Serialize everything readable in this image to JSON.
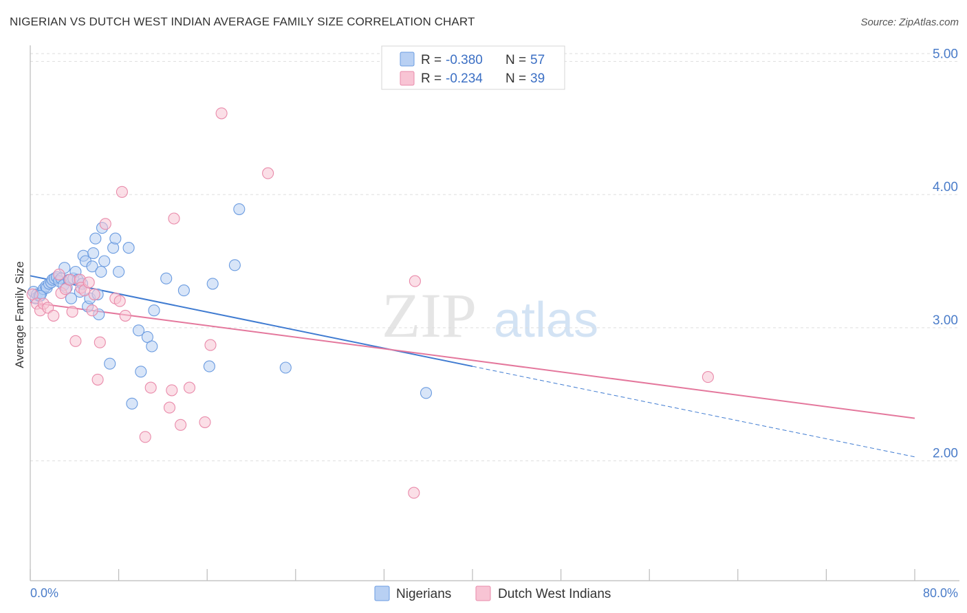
{
  "header": {
    "title": "NIGERIAN VS DUTCH WEST INDIAN AVERAGE FAMILY SIZE CORRELATION CHART",
    "source": "Source: ZipAtlas.com"
  },
  "watermark": {
    "zip": "ZIP",
    "atlas": "atlas"
  },
  "legend": {
    "rows": [
      {
        "r_label": "R =",
        "r_value": "-0.380",
        "n_label": "N =",
        "n_value": "57",
        "color": "#6a9be0"
      },
      {
        "r_label": "R =",
        "r_value": "-0.234",
        "n_label": "N =",
        "n_value": "39",
        "color": "#e98aaa"
      }
    ]
  },
  "bottom_legend": {
    "items": [
      "Nigerians",
      "Dutch West Indians"
    ]
  },
  "chart_data": {
    "type": "scatter",
    "title": "NIGERIAN VS DUTCH WEST INDIAN AVERAGE FAMILY SIZE CORRELATION CHART",
    "xlabel": "",
    "ylabel": "Average Family Size",
    "xlim": [
      0,
      80
    ],
    "ylim": [
      1.1,
      5.1
    ],
    "x_tick_labels": [
      "0.0%",
      "80.0%"
    ],
    "y_ticks": [
      2.0,
      3.0,
      4.0,
      5.0
    ],
    "y_tick_labels": [
      "2.00",
      "3.00",
      "4.00",
      "5.00"
    ],
    "grid": true,
    "legend_position": "top-center",
    "series": [
      {
        "name": "Nigerians",
        "color": "#6a9be0",
        "fill": "#b8d0f3",
        "r": -0.38,
        "n": 57,
        "trend": {
          "x0": 0,
          "y0": 3.39,
          "x1": 40,
          "y1": 2.71,
          "dashed_to_x": 80,
          "dashed_to_y": 2.03
        },
        "points": [
          [
            0.3,
            3.27
          ],
          [
            0.5,
            3.22
          ],
          [
            0.6,
            3.25
          ],
          [
            0.8,
            3.24
          ],
          [
            1.0,
            3.26
          ],
          [
            1.2,
            3.29
          ],
          [
            1.4,
            3.31
          ],
          [
            1.5,
            3.3
          ],
          [
            1.7,
            3.33
          ],
          [
            1.9,
            3.34
          ],
          [
            2.0,
            3.36
          ],
          [
            2.2,
            3.37
          ],
          [
            2.4,
            3.38
          ],
          [
            2.6,
            3.35
          ],
          [
            2.8,
            3.37
          ],
          [
            3.0,
            3.32
          ],
          [
            3.1,
            3.45
          ],
          [
            3.3,
            3.3
          ],
          [
            3.5,
            3.36
          ],
          [
            3.7,
            3.22
          ],
          [
            3.9,
            3.37
          ],
          [
            4.1,
            3.42
          ],
          [
            4.3,
            3.36
          ],
          [
            4.5,
            3.27
          ],
          [
            4.7,
            3.33
          ],
          [
            4.8,
            3.54
          ],
          [
            5.0,
            3.5
          ],
          [
            5.2,
            3.16
          ],
          [
            5.4,
            3.22
          ],
          [
            5.6,
            3.46
          ],
          [
            5.7,
            3.56
          ],
          [
            5.9,
            3.67
          ],
          [
            6.1,
            3.25
          ],
          [
            6.2,
            3.1
          ],
          [
            6.4,
            3.42
          ],
          [
            6.5,
            3.75
          ],
          [
            6.7,
            3.5
          ],
          [
            7.2,
            2.73
          ],
          [
            7.5,
            3.6
          ],
          [
            7.7,
            3.67
          ],
          [
            8.0,
            3.42
          ],
          [
            8.9,
            3.6
          ],
          [
            9.2,
            2.43
          ],
          [
            9.8,
            2.98
          ],
          [
            10.0,
            2.67
          ],
          [
            10.6,
            2.93
          ],
          [
            11.0,
            2.86
          ],
          [
            11.2,
            3.13
          ],
          [
            12.3,
            3.37
          ],
          [
            13.9,
            3.28
          ],
          [
            16.2,
            2.71
          ],
          [
            16.5,
            3.33
          ],
          [
            18.5,
            3.47
          ],
          [
            18.9,
            3.89
          ],
          [
            23.1,
            2.7
          ],
          [
            35.8,
            2.51
          ],
          [
            0.9,
            3.24
          ]
        ]
      },
      {
        "name": "Dutch West Indians",
        "color": "#e98aaa",
        "fill": "#f8c4d4",
        "r": -0.234,
        "n": 39,
        "trend": {
          "x0": 0,
          "y0": 3.19,
          "x1": 80,
          "y1": 2.32
        },
        "points": [
          [
            0.2,
            3.25
          ],
          [
            0.6,
            3.18
          ],
          [
            0.9,
            3.13
          ],
          [
            1.2,
            3.18
          ],
          [
            1.6,
            3.15
          ],
          [
            2.1,
            3.09
          ],
          [
            2.6,
            3.4
          ],
          [
            2.8,
            3.26
          ],
          [
            3.2,
            3.29
          ],
          [
            3.6,
            3.36
          ],
          [
            3.8,
            3.12
          ],
          [
            4.1,
            2.9
          ],
          [
            4.5,
            3.36
          ],
          [
            4.6,
            3.3
          ],
          [
            4.9,
            3.28
          ],
          [
            5.3,
            3.34
          ],
          [
            5.6,
            3.13
          ],
          [
            5.8,
            3.25
          ],
          [
            6.1,
            2.61
          ],
          [
            6.3,
            2.89
          ],
          [
            6.8,
            3.78
          ],
          [
            7.7,
            3.22
          ],
          [
            8.1,
            3.2
          ],
          [
            8.3,
            4.02
          ],
          [
            8.6,
            3.09
          ],
          [
            10.4,
            2.18
          ],
          [
            10.9,
            2.55
          ],
          [
            12.6,
            2.4
          ],
          [
            12.8,
            2.53
          ],
          [
            13.0,
            3.82
          ],
          [
            13.6,
            2.27
          ],
          [
            14.4,
            2.55
          ],
          [
            15.8,
            2.29
          ],
          [
            16.3,
            2.87
          ],
          [
            17.3,
            4.61
          ],
          [
            21.5,
            4.16
          ],
          [
            34.7,
            1.76
          ],
          [
            34.8,
            3.35
          ],
          [
            61.3,
            2.63
          ]
        ]
      }
    ]
  }
}
